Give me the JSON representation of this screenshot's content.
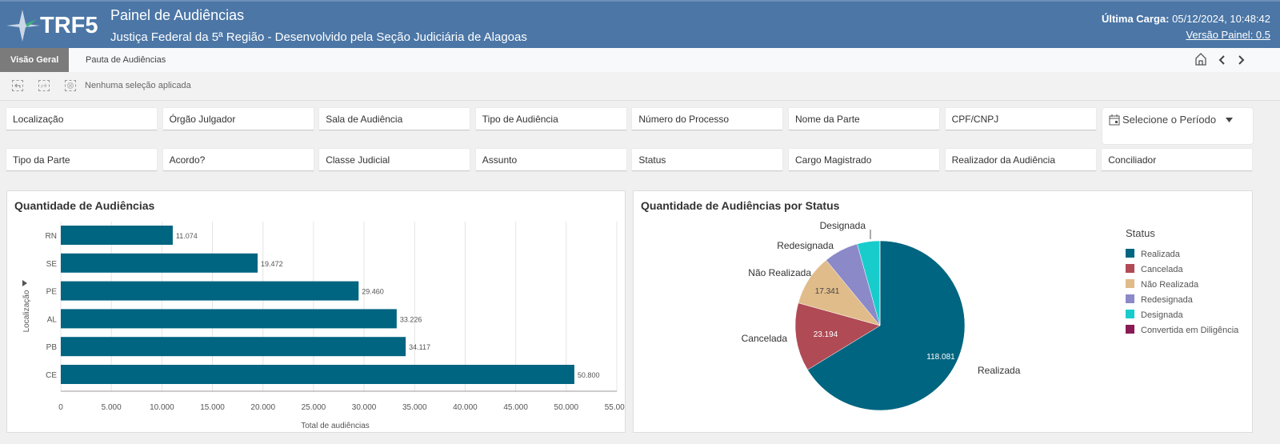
{
  "header": {
    "logo": "TRF5",
    "title": "Painel de Audiências",
    "subtitle": "Justiça Federal da 5ª Região - Desenvolvido pela Seção Judiciária de Alagoas",
    "carga_label": "Última Carga:",
    "carga_value": "05/12/2024, 10:48:42",
    "versao": "Versão Painel: 0.5",
    "color": "#4b76a6"
  },
  "tabs": [
    {
      "label": "Visão Geral",
      "active": true
    },
    {
      "label": "Pauta de Audiências",
      "active": false
    }
  ],
  "toolbar": {
    "selection_status": "Nenhuma seleção aplicada"
  },
  "filters": {
    "row1": [
      "Localização",
      "Órgão Julgador",
      "Sala de Audiência",
      "Tipo de Audiência",
      "Número do Processo",
      "Nome da Parte",
      "CPF/CNPJ"
    ],
    "row2": [
      "Tipo da Parte",
      "Acordo?",
      "Classe Judicial",
      "Assunto",
      "Status",
      "Cargo Magistrado",
      "Realizador da Audiência",
      "Conciliador"
    ],
    "period": "Selecione o Período"
  },
  "chart_data": [
    {
      "type": "bar",
      "orientation": "horizontal",
      "title": "Quantidade de Audiências",
      "xlabel": "Total de audiências",
      "ylabel": "Localização",
      "categories": [
        "RN",
        "SE",
        "PE",
        "AL",
        "PB",
        "CE"
      ],
      "values": [
        11074,
        19472,
        29460,
        33226,
        34117,
        50800
      ],
      "value_labels": [
        "11.074",
        "19.472",
        "29.460",
        "33.226",
        "34.117",
        "50.800"
      ],
      "xlim": [
        0,
        55000
      ],
      "xticks": [
        "0",
        "5.000",
        "10.000",
        "15.000",
        "20.000",
        "25.000",
        "30.000",
        "35.000",
        "40.000",
        "45.000",
        "50.000",
        "55.000"
      ],
      "grid": true,
      "color": "#006580"
    },
    {
      "type": "pie",
      "title": "Quantidade de Audiências por Status",
      "legend_title": "Status",
      "legend_position": "right",
      "slices": [
        {
          "label": "Realizada",
          "value": 118081,
          "value_label": "118.081",
          "color": "#006580"
        },
        {
          "label": "Cancelada",
          "value": 23194,
          "value_label": "23.194",
          "color": "#b04a55"
        },
        {
          "label": "Não Realizada",
          "value": 17341,
          "value_label": "17.341",
          "color": "#e0bc8a"
        },
        {
          "label": "Redesignada",
          "value": 11800,
          "value_label": "",
          "color": "#8c89c8"
        },
        {
          "label": "Designada",
          "value": 7700,
          "value_label": "",
          "color": "#19cccc"
        },
        {
          "label": "Convertida em Diligência",
          "value": 30,
          "value_label": "",
          "color": "#8a1a55"
        }
      ]
    }
  ]
}
